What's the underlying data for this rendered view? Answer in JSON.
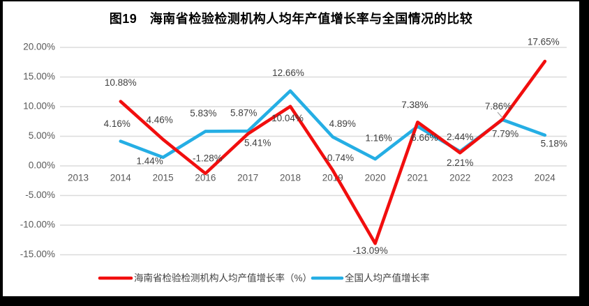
{
  "chart_data": {
    "type": "line",
    "title": "图19　海南省检验检测机构人均年产值增长率与全国情况的比较",
    "categories": [
      "2013",
      "2014",
      "2015",
      "2016",
      "2017",
      "2018",
      "2019",
      "2020",
      "2021",
      "2022",
      "2023",
      "2024"
    ],
    "series": [
      {
        "name": "海南省检验检测机构人均产值增长率（%）",
        "color": "#F10E0E",
        "values": [
          null,
          10.88,
          4.46,
          -1.28,
          5.41,
          10.04,
          -0.74,
          -13.09,
          7.38,
          2.21,
          7.86,
          17.65
        ],
        "labels": [
          "",
          "10.88%",
          "4.46%",
          "-1.28%",
          "5.41%",
          "10.04%",
          "-0.74%",
          "-13.09%",
          "7.38%",
          "2.21%",
          "7.86%",
          "17.65%"
        ]
      },
      {
        "name": "全国人均产值增长率",
        "color": "#25AEE4",
        "values": [
          null,
          4.16,
          1.44,
          5.83,
          5.87,
          12.66,
          4.89,
          1.16,
          6.66,
          2.44,
          7.79,
          5.18
        ],
        "labels": [
          "",
          "4.16%",
          "1.44%",
          "5.83%",
          "5.87%",
          "12.66%",
          "4.89%",
          "1.16%",
          "6.66%",
          "2.44%",
          "7.79%",
          "5.18%"
        ]
      }
    ],
    "ylim": [
      -15,
      20
    ],
    "ytick_step": 5,
    "ytick_labels": [
      "20.00%",
      "15.00%",
      "10.00%",
      "5.00%",
      "0.00%",
      "-5.00%",
      "-10.00%",
      "-15.00%"
    ],
    "xlabel": "",
    "ylabel": "",
    "grid": true,
    "data_labels": true,
    "legend_position": "bottom",
    "x_labels_next_to_zero_axis": true
  },
  "colors": {
    "gridline": "#DBDBDB",
    "axis_text": "#595959",
    "data_label_text": "#3F3F3F",
    "legend_text": "#404040",
    "leader_line": "#A6A6A6",
    "frame": "#000000",
    "panel_bg": "#FFFFFF"
  }
}
